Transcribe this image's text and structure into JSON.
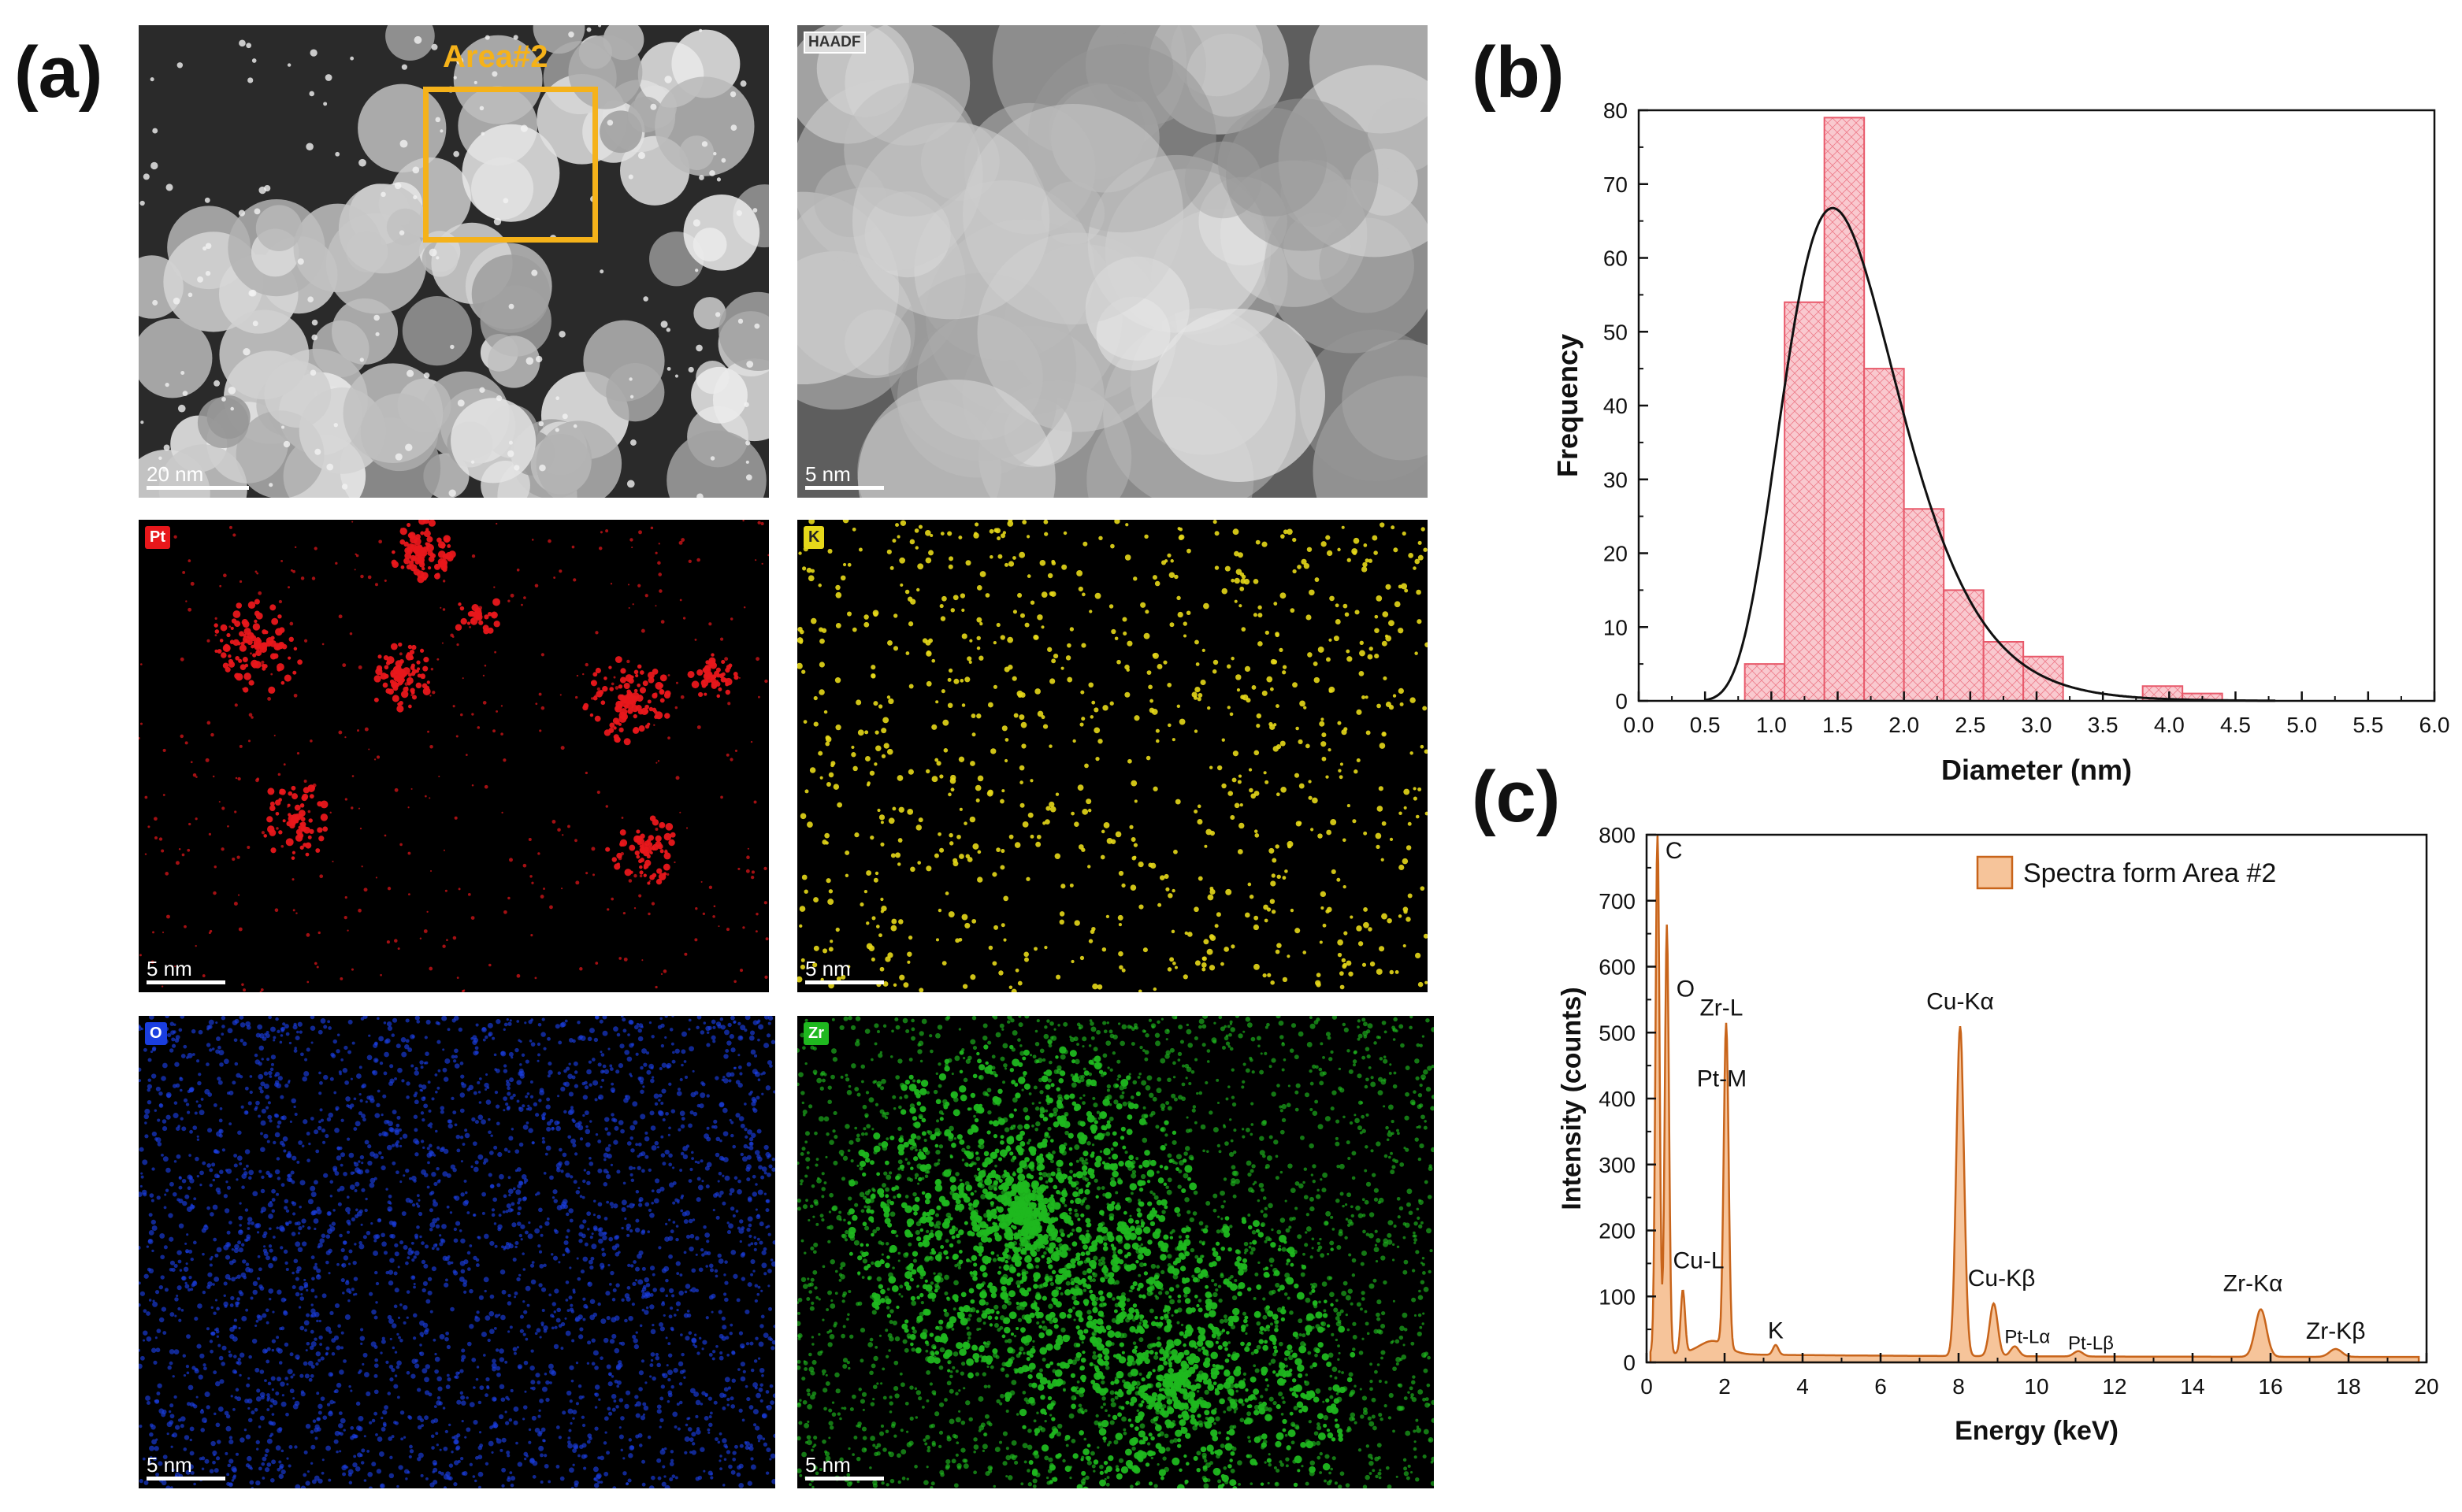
{
  "panel_labels": {
    "a": "(a)",
    "b": "(b)",
    "c": "(c)"
  },
  "micrographs": {
    "overview": {
      "scale": "20 nm",
      "area_label": "Area#2"
    },
    "haadf": {
      "tag": "HAADF",
      "scale": "5 nm"
    },
    "pt": {
      "tag": "Pt",
      "scale": "5 nm",
      "color": "#e8171b"
    },
    "k": {
      "tag": "K",
      "scale": "5 nm",
      "color": "#e6d81a"
    },
    "o": {
      "tag": "O",
      "scale": "5 nm",
      "color": "#1a3ee0"
    },
    "zr": {
      "tag": "Zr",
      "scale": "5 nm",
      "color": "#1fb81f"
    }
  },
  "colors": {
    "highlight": "#f5b21a",
    "hist_fill": "#f9c9cf",
    "hist_edge": "#e8596a",
    "spectrum": "#c8641a",
    "spectrum_fill": "#f6c49a"
  },
  "chart_data": [
    {
      "type": "bar",
      "panel": "(b)",
      "xlabel": "Diameter (nm)",
      "ylabel": "Frequency",
      "xlim": [
        0.0,
        6.0
      ],
      "ylim": [
        0,
        80
      ],
      "xticks": [
        "0.0",
        "0.5",
        "1.0",
        "1.5",
        "2.0",
        "2.5",
        "3.0",
        "3.5",
        "4.0",
        "4.5",
        "5.0",
        "5.5",
        "6.0"
      ],
      "yticks": [
        "0",
        "10",
        "20",
        "30",
        "40",
        "50",
        "60",
        "70",
        "80"
      ],
      "bin_width": 0.3,
      "bins": [
        {
          "x": 0.8,
          "value": 5
        },
        {
          "x": 1.1,
          "value": 54
        },
        {
          "x": 1.4,
          "value": 79
        },
        {
          "x": 1.7,
          "value": 45
        },
        {
          "x": 2.0,
          "value": 26
        },
        {
          "x": 2.3,
          "value": 15
        },
        {
          "x": 2.6,
          "value": 8
        },
        {
          "x": 2.9,
          "value": 6
        },
        {
          "x": 3.2,
          "value": 0
        },
        {
          "x": 3.5,
          "value": 0
        },
        {
          "x": 3.8,
          "value": 2
        },
        {
          "x": 4.1,
          "value": 1
        }
      ],
      "fit": {
        "type": "lognormal",
        "peak_x": 1.55,
        "peak_y": 65.5
      }
    },
    {
      "type": "area",
      "panel": "(c)",
      "xlabel": "Energy (keV)",
      "ylabel": "Intensity (counts)",
      "xlim": [
        0,
        20
      ],
      "ylim": [
        0,
        800
      ],
      "xticks": [
        "0",
        "2",
        "4",
        "6",
        "8",
        "10",
        "12",
        "14",
        "16",
        "18",
        "20"
      ],
      "yticks": [
        "0",
        "100",
        "200",
        "300",
        "400",
        "500",
        "600",
        "700",
        "800"
      ],
      "legend": "Spectra form Area #2",
      "legend_position": "top-right",
      "peaks": [
        {
          "label": "C",
          "energy": 0.28,
          "counts": 800
        },
        {
          "label": "O",
          "energy": 0.52,
          "counts": 650
        },
        {
          "label": "Cu-L",
          "energy": 0.93,
          "counts": 95
        },
        {
          "label": "Zr-L",
          "energy": 2.04,
          "counts": 490
        },
        {
          "label": "Pt-M",
          "energy": 2.05,
          "counts": 490
        },
        {
          "label": "K",
          "energy": 3.31,
          "counts": 15
        },
        {
          "label": "Cu-Kα",
          "energy": 8.04,
          "counts": 500
        },
        {
          "label": "Cu-Kβ",
          "energy": 8.9,
          "counts": 80
        },
        {
          "label": "Pt-Lα",
          "energy": 9.44,
          "counts": 15
        },
        {
          "label": "Pt-Lβ",
          "energy": 11.07,
          "counts": 8
        },
        {
          "label": "Zr-Kα",
          "energy": 15.75,
          "counts": 72
        },
        {
          "label": "Zr-Kβ",
          "energy": 17.67,
          "counts": 12
        }
      ]
    }
  ]
}
